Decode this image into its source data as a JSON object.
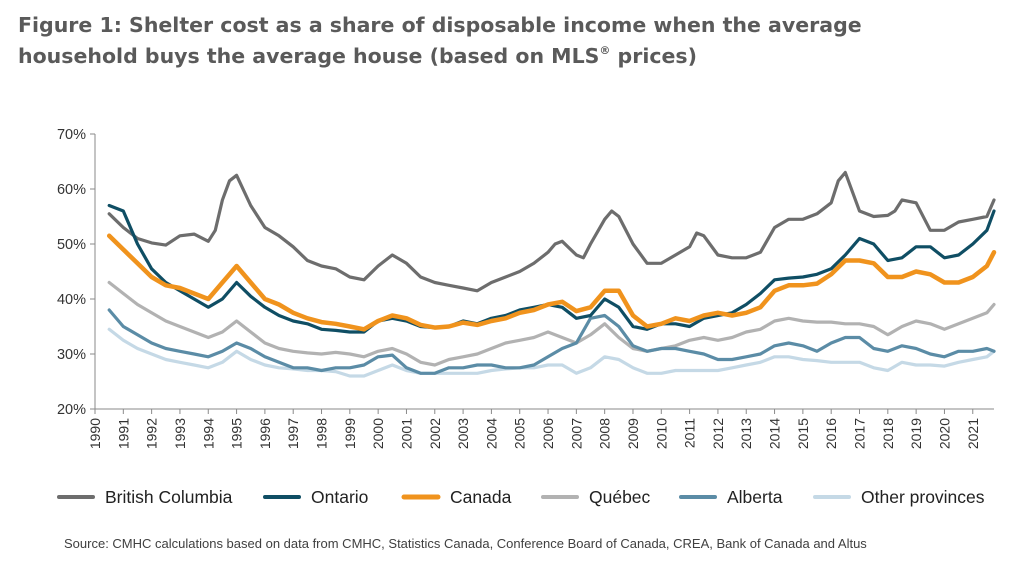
{
  "title": {
    "prefix": "Figure 1: Shelter cost as a share of disposable income when the average household buys the average house (based on MLS",
    "sup": "®",
    "suffix": " prices)"
  },
  "source": "Source: CMHC calculations based on data from CMHC, Statistics Canada, Conference Board of Canada, CREA, Bank of Canada and Altus",
  "chart_data": {
    "type": "line",
    "title": "Figure 1: Shelter cost as a share of disposable income when the average household buys the average house (based on MLS® prices)",
    "xlabel": "",
    "ylabel": "",
    "xlim": [
      1990,
      2021.75
    ],
    "ylim": [
      20,
      70
    ],
    "y_ticks": [
      "20%",
      "30%",
      "40%",
      "50%",
      "60%",
      "70%"
    ],
    "x_ticks": [
      "1990",
      "1991",
      "1992",
      "1993",
      "1994",
      "1995",
      "1996",
      "1997",
      "1998",
      "1999",
      "2000",
      "2001",
      "2002",
      "2003",
      "2004",
      "2005",
      "2006",
      "2007",
      "2008",
      "2009",
      "2010",
      "2011",
      "2012",
      "2013",
      "2014",
      "2015",
      "2016",
      "2017",
      "2018",
      "2019",
      "2020",
      "2021"
    ],
    "grid": false,
    "legend_position": "bottom",
    "series": [
      {
        "name": "British Columbia",
        "color": "#6d6d6d",
        "x": [
          1990.5,
          1991,
          1991.5,
          1992,
          1992.5,
          1993,
          1993.5,
          1994,
          1994.25,
          1994.5,
          1994.75,
          1995,
          1995.5,
          1996,
          1996.5,
          1997,
          1997.5,
          1998,
          1998.5,
          1999,
          1999.5,
          2000,
          2000.5,
          2001,
          2001.5,
          2002,
          2002.5,
          2003,
          2003.5,
          2004,
          2004.5,
          2005,
          2005.5,
          2006,
          2006.25,
          2006.5,
          2007,
          2007.25,
          2007.5,
          2008,
          2008.25,
          2008.5,
          2009,
          2009.5,
          2010,
          2010.5,
          2011,
          2011.25,
          2011.5,
          2012,
          2012.5,
          2013,
          2013.5,
          2014,
          2014.5,
          2015,
          2015.5,
          2016,
          2016.25,
          2016.5,
          2017,
          2017.5,
          2018,
          2018.25,
          2018.5,
          2019,
          2019.5,
          2020,
          2020.5,
          2021,
          2021.5,
          2021.75
        ],
        "values": [
          55.5,
          53,
          51,
          50.2,
          49.8,
          51.5,
          51.8,
          50.5,
          52.5,
          58,
          61.5,
          62.5,
          57,
          53,
          51.5,
          49.5,
          47,
          46,
          45.5,
          44,
          43.5,
          46,
          48,
          46.5,
          44,
          43,
          42.5,
          42,
          41.5,
          43,
          44,
          45,
          46.5,
          48.5,
          50,
          50.5,
          48,
          47.5,
          50,
          54.5,
          56,
          55,
          50,
          46.5,
          46.5,
          48,
          49.5,
          52,
          51.5,
          48,
          47.5,
          47.5,
          48.5,
          53,
          54.5,
          54.5,
          55.5,
          57.5,
          61.5,
          63,
          56,
          55,
          55.2,
          56,
          58,
          57.5,
          52.5,
          52.5,
          54,
          54.5,
          55,
          58
        ]
      },
      {
        "name": "Ontario",
        "color": "#0f4e64",
        "x": [
          1990.5,
          1991,
          1991.5,
          1992,
          1992.5,
          1993,
          1993.5,
          1994,
          1994.5,
          1995,
          1995.5,
          1996,
          1996.5,
          1997,
          1997.5,
          1998,
          1998.5,
          1999,
          1999.5,
          2000,
          2000.5,
          2001,
          2001.5,
          2002,
          2002.5,
          2003,
          2003.5,
          2004,
          2004.5,
          2005,
          2005.5,
          2006,
          2006.5,
          2007,
          2007.5,
          2008,
          2008.5,
          2009,
          2009.5,
          2010,
          2010.5,
          2011,
          2011.5,
          2012,
          2012.5,
          2013,
          2013.5,
          2014,
          2014.5,
          2015,
          2015.5,
          2016,
          2016.5,
          2017,
          2017.5,
          2018,
          2018.5,
          2019,
          2019.5,
          2020,
          2020.5,
          2021,
          2021.5,
          2021.75
        ],
        "values": [
          57,
          56,
          50,
          45.5,
          43,
          41.5,
          40,
          38.5,
          40,
          43,
          40.5,
          38.5,
          37,
          36,
          35.5,
          34.5,
          34.3,
          34,
          34,
          36,
          36.5,
          36,
          35,
          34.8,
          35,
          36,
          35.5,
          36.5,
          37,
          38,
          38.5,
          39,
          38.5,
          36.5,
          37,
          40,
          38.5,
          35,
          34.5,
          35.5,
          35.5,
          35,
          36.5,
          37,
          37.5,
          39,
          41,
          43.5,
          43.8,
          44,
          44.5,
          45.5,
          48,
          51,
          50,
          47,
          47.5,
          49.5,
          49.5,
          47.5,
          48,
          50,
          52.5,
          56
        ]
      },
      {
        "name": "Canada",
        "color": "#f0931d",
        "x": [
          1990.5,
          1991,
          1991.5,
          1992,
          1992.5,
          1993,
          1993.5,
          1994,
          1994.5,
          1995,
          1995.5,
          1996,
          1996.5,
          1997,
          1997.5,
          1998,
          1998.5,
          1999,
          1999.5,
          2000,
          2000.5,
          2001,
          2001.5,
          2002,
          2002.5,
          2003,
          2003.5,
          2004,
          2004.5,
          2005,
          2005.5,
          2006,
          2006.5,
          2007,
          2007.5,
          2008,
          2008.5,
          2009,
          2009.5,
          2010,
          2010.5,
          2011,
          2011.5,
          2012,
          2012.5,
          2013,
          2013.5,
          2014,
          2014.5,
          2015,
          2015.5,
          2016,
          2016.5,
          2017,
          2017.5,
          2018,
          2018.5,
          2019,
          2019.5,
          2020,
          2020.5,
          2021,
          2021.5,
          2021.75
        ],
        "values": [
          51.5,
          49,
          46.5,
          44,
          42.5,
          42,
          41,
          40,
          43,
          46,
          43,
          40,
          39,
          37.5,
          36.5,
          35.8,
          35.5,
          35,
          34.5,
          36,
          37,
          36.5,
          35.3,
          34.8,
          35,
          35.7,
          35.3,
          36,
          36.5,
          37.5,
          38,
          39,
          39.5,
          37.8,
          38.5,
          41.5,
          41.5,
          37,
          35,
          35.5,
          36.5,
          36,
          37,
          37.5,
          37,
          37.5,
          38.5,
          41.5,
          42.5,
          42.5,
          42.8,
          44.5,
          47,
          47,
          46.5,
          44,
          44,
          45,
          44.5,
          43,
          43,
          44,
          46,
          48.5
        ]
      },
      {
        "name": "Québec",
        "color": "#b2b2b2",
        "x": [
          1990.5,
          1991,
          1991.5,
          1992,
          1992.5,
          1993,
          1993.5,
          1994,
          1994.5,
          1995,
          1995.5,
          1996,
          1996.5,
          1997,
          1997.5,
          1998,
          1998.5,
          1999,
          1999.5,
          2000,
          2000.5,
          2001,
          2001.5,
          2002,
          2002.5,
          2003,
          2003.5,
          2004,
          2004.5,
          2005,
          2005.5,
          2006,
          2006.5,
          2007,
          2007.5,
          2008,
          2008.5,
          2009,
          2009.5,
          2010,
          2010.5,
          2011,
          2011.5,
          2012,
          2012.5,
          2013,
          2013.5,
          2014,
          2014.5,
          2015,
          2015.5,
          2016,
          2016.5,
          2017,
          2017.5,
          2018,
          2018.5,
          2019,
          2019.5,
          2020,
          2020.5,
          2021,
          2021.5,
          2021.75
        ],
        "values": [
          43,
          41,
          39,
          37.5,
          36,
          35,
          34,
          33,
          34,
          36,
          34,
          32,
          31,
          30.5,
          30.2,
          30,
          30.3,
          30,
          29.5,
          30.5,
          31,
          30,
          28.5,
          28,
          29,
          29.5,
          30,
          31,
          32,
          32.5,
          33,
          34,
          33,
          32,
          33.5,
          35.5,
          33,
          31,
          30.5,
          31,
          31.5,
          32.5,
          33,
          32.5,
          33,
          34,
          34.5,
          36,
          36.5,
          36,
          35.8,
          35.8,
          35.5,
          35.5,
          35,
          33.5,
          35,
          36,
          35.5,
          34.5,
          35.5,
          36.5,
          37.5,
          39
        ]
      },
      {
        "name": "Alberta",
        "color": "#5b8ca6",
        "x": [
          1990.5,
          1991,
          1991.5,
          1992,
          1992.5,
          1993,
          1993.5,
          1994,
          1994.5,
          1995,
          1995.5,
          1996,
          1996.5,
          1997,
          1997.5,
          1998,
          1998.5,
          1999,
          1999.5,
          2000,
          2000.5,
          2001,
          2001.5,
          2002,
          2002.5,
          2003,
          2003.5,
          2004,
          2004.5,
          2005,
          2005.5,
          2006,
          2006.5,
          2007,
          2007.5,
          2008,
          2008.5,
          2009,
          2009.5,
          2010,
          2010.5,
          2011,
          2011.5,
          2012,
          2012.5,
          2013,
          2013.5,
          2014,
          2014.5,
          2015,
          2015.5,
          2016,
          2016.5,
          2017,
          2017.5,
          2018,
          2018.5,
          2019,
          2019.5,
          2020,
          2020.5,
          2021,
          2021.5,
          2021.75
        ],
        "values": [
          38,
          35,
          33.5,
          32,
          31,
          30.5,
          30,
          29.5,
          30.5,
          32,
          31,
          29.5,
          28.5,
          27.5,
          27.5,
          27,
          27.5,
          27.5,
          28,
          29.5,
          29.8,
          27.5,
          26.5,
          26.5,
          27.5,
          27.5,
          28,
          28,
          27.5,
          27.5,
          28,
          29.5,
          31,
          32,
          36.5,
          37,
          35,
          31.5,
          30.5,
          31,
          31,
          30.5,
          30,
          29,
          29,
          29.5,
          30,
          31.5,
          32,
          31.5,
          30.5,
          32,
          33,
          33,
          31,
          30.5,
          31.5,
          31,
          30,
          29.5,
          30.5,
          30.5,
          31,
          30.5
        ]
      },
      {
        "name": "Other provinces",
        "color": "#c5d9e6",
        "x": [
          1990.5,
          1991,
          1991.5,
          1992,
          1992.5,
          1993,
          1993.5,
          1994,
          1994.5,
          1995,
          1995.5,
          1996,
          1996.5,
          1997,
          1997.5,
          1998,
          1998.5,
          1999,
          1999.5,
          2000,
          2000.5,
          2001,
          2001.5,
          2002,
          2002.5,
          2003,
          2003.5,
          2004,
          2004.5,
          2005,
          2005.5,
          2006,
          2006.5,
          2007,
          2007.5,
          2008,
          2008.5,
          2009,
          2009.5,
          2010,
          2010.5,
          2011,
          2011.5,
          2012,
          2012.5,
          2013,
          2013.5,
          2014,
          2014.5,
          2015,
          2015.5,
          2016,
          2016.5,
          2017,
          2017.5,
          2018,
          2018.5,
          2019,
          2019.5,
          2020,
          2020.5,
          2021,
          2021.5,
          2021.75
        ],
        "values": [
          34.5,
          32.5,
          31,
          30,
          29,
          28.5,
          28,
          27.5,
          28.5,
          30.5,
          29,
          28,
          27.5,
          27.3,
          27,
          27,
          26.8,
          26,
          26,
          27,
          28,
          27,
          26.5,
          26.5,
          26.5,
          26.5,
          26.5,
          27,
          27.3,
          27.5,
          27.5,
          28,
          28,
          26.5,
          27.5,
          29.5,
          29,
          27.5,
          26.5,
          26.5,
          27,
          27,
          27,
          27,
          27.5,
          28,
          28.5,
          29.5,
          29.5,
          29,
          28.8,
          28.5,
          28.5,
          28.5,
          27.5,
          27,
          28.5,
          28,
          28,
          27.8,
          28.5,
          29,
          29.5,
          30.5
        ]
      }
    ]
  }
}
